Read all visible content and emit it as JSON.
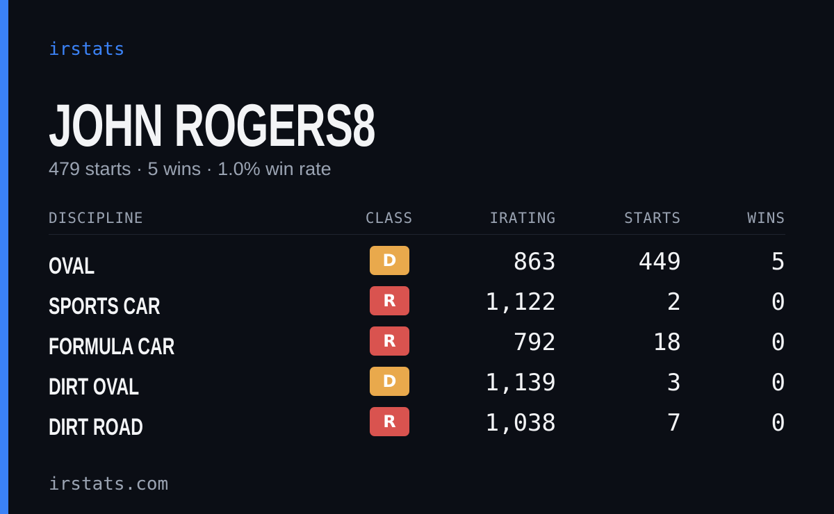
{
  "brand": "irstats",
  "driver": {
    "name": "JOHN ROGERS8",
    "summary": "479 starts · 5 wins · 1.0% win rate"
  },
  "table": {
    "headers": [
      "DISCIPLINE",
      "CLASS",
      "IRATING",
      "STARTS",
      "WINS"
    ],
    "rows": [
      [
        "OVAL",
        "D",
        "863",
        "449",
        "5"
      ],
      [
        "SPORTS CAR",
        "R",
        "1,122",
        "2",
        "0"
      ],
      [
        "FORMULA CAR",
        "R",
        "792",
        "18",
        "0"
      ],
      [
        "DIRT OVAL",
        "D",
        "1,139",
        "3",
        "0"
      ],
      [
        "DIRT ROAD",
        "R",
        "1,038",
        "7",
        "0"
      ]
    ],
    "class_colors": {
      "D": "#e9a94c",
      "R": "#d9534f"
    }
  },
  "footer": "irstats.com"
}
